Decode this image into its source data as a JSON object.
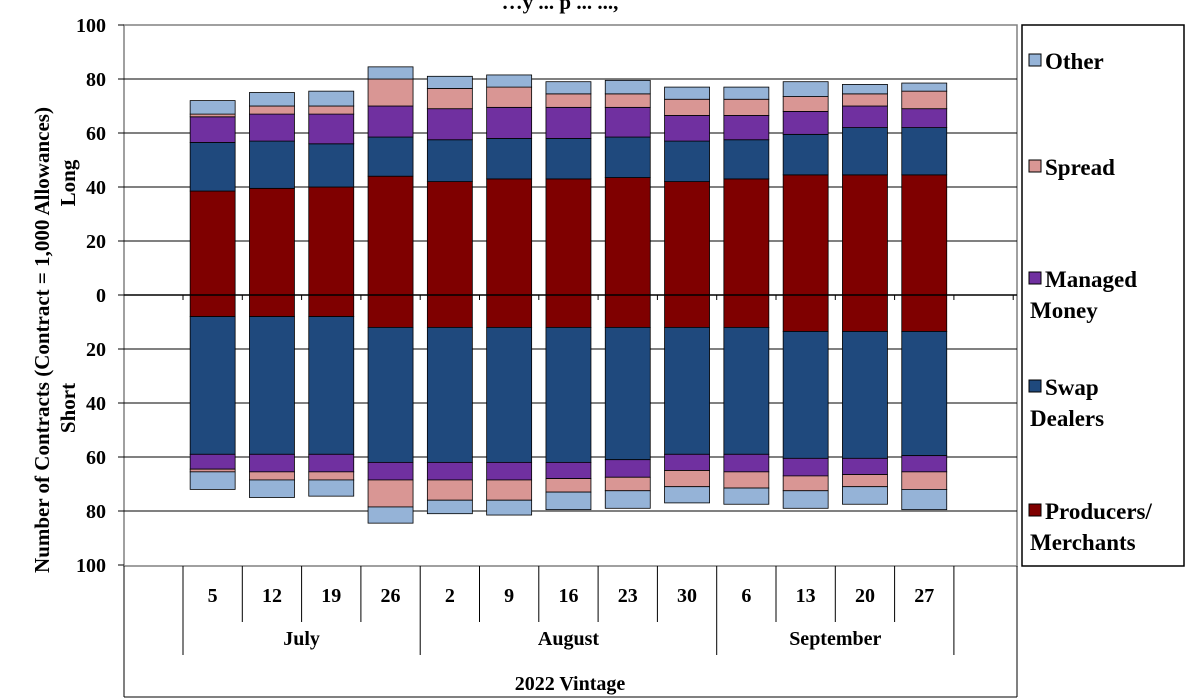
{
  "chart_data": {
    "type": "bar",
    "title": "…y ... p ...  ...,",
    "ylabel": "Number of Contracts (Contract = 1,000 Allowances)",
    "ylabel_upper": "Long",
    "ylabel_lower": "Short",
    "ylim": [
      -100,
      100
    ],
    "y_ticks": [
      100,
      80,
      60,
      40,
      20,
      0,
      20,
      40,
      60,
      80,
      100
    ],
    "categories": [
      "5",
      "12",
      "19",
      "26",
      "2",
      "9",
      "16",
      "23",
      "30",
      "6",
      "13",
      "20",
      "27"
    ],
    "category_groups": [
      {
        "label": "July",
        "count": 4
      },
      {
        "label": "August",
        "count": 5
      },
      {
        "label": "September",
        "count": 4
      }
    ],
    "outer_group": "2022 Vintage",
    "legend_position": "right",
    "series": [
      {
        "name": "Producers/ Merchants",
        "color": "#7f0000",
        "long": [
          38.5,
          39.5,
          40.0,
          44.0,
          42.0,
          43.0,
          43.0,
          43.5,
          42.0,
          43.0,
          44.5,
          44.5,
          44.5
        ],
        "short": [
          8.0,
          8.0,
          8.0,
          12.0,
          12.0,
          12.0,
          12.0,
          12.0,
          12.0,
          12.0,
          13.5,
          13.5,
          13.5
        ]
      },
      {
        "name": "Swap Dealers",
        "color": "#1f497d",
        "long": [
          18.0,
          17.5,
          16.0,
          14.5,
          15.5,
          15.0,
          15.0,
          15.0,
          15.0,
          14.5,
          15.0,
          17.5,
          17.5
        ],
        "short": [
          51.0,
          51.0,
          51.0,
          50.0,
          50.0,
          50.0,
          50.0,
          49.0,
          47.0,
          47.0,
          47.0,
          47.0,
          46.0
        ]
      },
      {
        "name": "Managed Money",
        "color": "#7030a0",
        "long": [
          9.5,
          10.0,
          11.0,
          11.5,
          11.5,
          11.5,
          11.5,
          11.0,
          9.5,
          9.0,
          8.5,
          8.0,
          7.0
        ],
        "short": [
          5.5,
          6.5,
          6.5,
          6.5,
          6.5,
          6.5,
          6.0,
          6.5,
          6.0,
          6.5,
          6.5,
          6.0,
          6.0
        ]
      },
      {
        "name": "Spread",
        "color": "#d99694",
        "long": [
          1.0,
          3.0,
          3.0,
          10.0,
          7.5,
          7.5,
          5.0,
          5.0,
          6.0,
          6.0,
          5.5,
          4.5,
          6.5
        ],
        "short": [
          1.0,
          3.0,
          3.0,
          10.0,
          7.5,
          7.5,
          5.0,
          5.0,
          6.0,
          6.0,
          5.5,
          4.5,
          6.5
        ]
      },
      {
        "name": "Other",
        "color": "#95b3d7",
        "long": [
          5.0,
          5.0,
          5.5,
          4.5,
          4.5,
          4.5,
          4.5,
          5.0,
          4.5,
          4.5,
          5.5,
          3.5,
          3.0
        ],
        "short": [
          6.5,
          6.5,
          6.0,
          6.0,
          5.0,
          5.5,
          6.5,
          6.5,
          6.0,
          6.0,
          6.5,
          6.5,
          7.5
        ]
      }
    ]
  }
}
